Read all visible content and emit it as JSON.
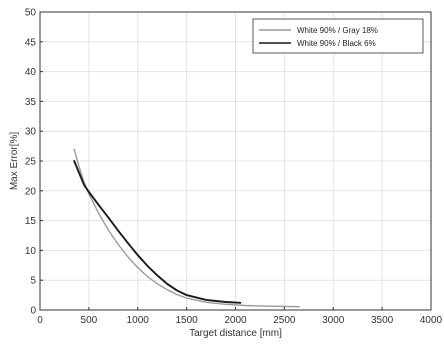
{
  "chart_data": {
    "type": "line",
    "title": "",
    "xlabel": "Target distance [mm]",
    "ylabel": "Max Error[%]",
    "xlim": [
      0,
      4000
    ],
    "ylim": [
      0,
      50
    ],
    "xticks": [
      0,
      500,
      1000,
      1500,
      2000,
      2500,
      3000,
      3500,
      4000
    ],
    "xtick_labels": [
      "0",
      "500",
      "1000",
      "1500",
      "2000",
      "2500",
      "3000",
      "3500",
      "4000"
    ],
    "yticks": [
      0,
      5,
      10,
      15,
      20,
      25,
      30,
      35,
      40,
      45,
      50
    ],
    "ytick_labels": [
      "0",
      "5",
      "10",
      "15",
      "20",
      "25",
      "30",
      "35",
      "40",
      "45",
      "50"
    ],
    "grid": true,
    "legend_position": "top-right",
    "series": [
      {
        "name": "White 90% / Gray 18%",
        "color": "#9a9a9a",
        "x": [
          350,
          400,
          450,
          500,
          600,
          700,
          800,
          900,
          1000,
          1100,
          1200,
          1300,
          1400,
          1500,
          1700,
          1900,
          2100,
          2300,
          2500,
          2650
        ],
        "y": [
          27,
          24,
          21.5,
          19.5,
          16.2,
          13.4,
          11.0,
          8.9,
          7.1,
          5.6,
          4.4,
          3.4,
          2.6,
          2.0,
          1.3,
          0.95,
          0.75,
          0.65,
          0.6,
          0.55
        ]
      },
      {
        "name": "White 90% / Black 6%",
        "color": "#1a1a1a",
        "x": [
          350,
          400,
          450,
          500,
          600,
          700,
          800,
          900,
          1000,
          1100,
          1200,
          1300,
          1400,
          1500,
          1700,
          1900,
          2050
        ],
        "y": [
          25,
          23,
          21,
          19.8,
          17.6,
          15.5,
          13.3,
          11.2,
          9.2,
          7.4,
          5.8,
          4.4,
          3.3,
          2.5,
          1.7,
          1.35,
          1.2
        ]
      }
    ]
  }
}
